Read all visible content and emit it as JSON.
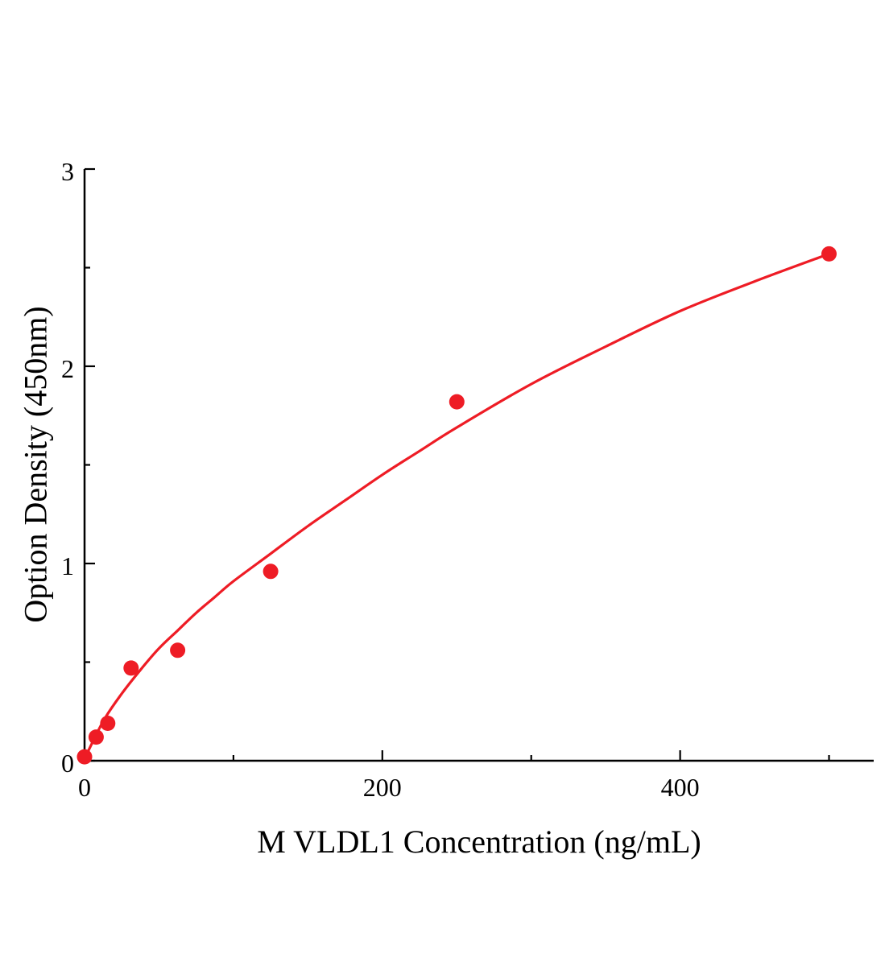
{
  "figure": {
    "background_color": "#ffffff",
    "axis_color": "#000000"
  },
  "chart_data": {
    "type": "scatter",
    "title": "",
    "xlabel": "M VLDL1 Concentration (ng/mL)",
    "ylabel": "Option Density (450nm)",
    "xlim": [
      0,
      530
    ],
    "ylim": [
      0,
      3
    ],
    "x_major_ticks": [
      0,
      200,
      400
    ],
    "x_minor_ticks": [
      100,
      300,
      500
    ],
    "y_major_ticks": [
      0,
      1,
      2,
      3
    ],
    "y_minor_ticks": [
      0.5,
      1.5,
      2.5
    ],
    "grid": false,
    "legend_position": "none",
    "series": [
      {
        "name": "standard-points",
        "type": "scatter",
        "color": "#ee1c25",
        "marker": "circle",
        "marker_radius": 9.5,
        "x": [
          0,
          7.8,
          15.6,
          31.25,
          62.5,
          125,
          250,
          500
        ],
        "y": [
          0.02,
          0.12,
          0.19,
          0.47,
          0.56,
          0.96,
          1.82,
          2.57
        ]
      },
      {
        "name": "fitted-curve",
        "type": "line",
        "color": "#ee1c25",
        "line_width": 3.2,
        "x": [
          0,
          12.5,
          25,
          37.5,
          50,
          62.5,
          75,
          87.5,
          100,
          125,
          150,
          175,
          200,
          225,
          250,
          300,
          350,
          400,
          450,
          500
        ],
        "y": [
          0.01,
          0.2,
          0.34,
          0.46,
          0.57,
          0.66,
          0.75,
          0.83,
          0.91,
          1.05,
          1.19,
          1.32,
          1.45,
          1.57,
          1.69,
          1.91,
          2.1,
          2.28,
          2.43,
          2.57
        ]
      }
    ]
  }
}
